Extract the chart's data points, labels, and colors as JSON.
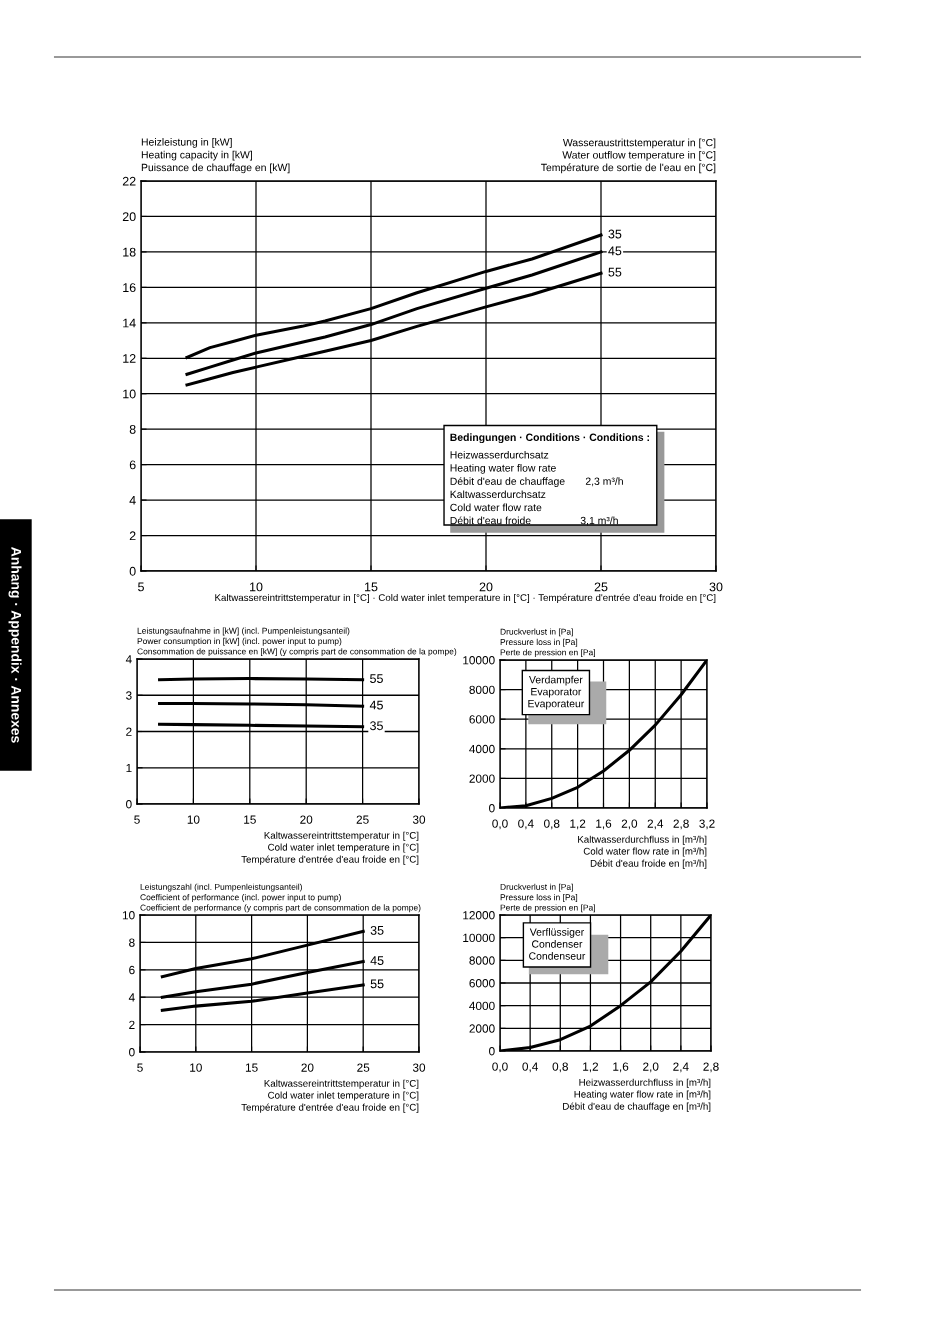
{
  "chart_data": [
    {
      "type": "line",
      "ylabel": "Heizleistung in [kW]\nHeating capacity in [kW]\nPuissance de chauffage en [kW]",
      "legend_title": "Wasseraustrittstemperatur in [°C]\nWater outflow temperature in [°C]\nTempérature de sortie de l'eau en [°C]",
      "xlabel": "Kaltwassereintrittstemperatur in [°C] · Cold water inlet temperature in [°C] · Température d'entrée d'eau froide en [°C]",
      "x": [
        7,
        8,
        9,
        10,
        12,
        13,
        15,
        17,
        20,
        22,
        25
      ],
      "series": [
        {
          "name": "35",
          "color": "#000000",
          "values": [
            12.05,
            12.6,
            12.95,
            13.3,
            13.8,
            14.1,
            14.8,
            15.7,
            16.9,
            17.6,
            18.95
          ]
        },
        {
          "name": "45",
          "color": "#000000",
          "values": [
            11.1,
            11.5,
            11.9,
            12.3,
            12.9,
            13.2,
            13.9,
            14.8,
            15.95,
            16.7,
            18.0
          ]
        },
        {
          "name": "55",
          "color": "#000000",
          "values": [
            10.5,
            10.85,
            11.2,
            11.5,
            12.1,
            12.4,
            13.0,
            13.8,
            14.9,
            15.6,
            16.8
          ]
        }
      ],
      "xlim": [
        5,
        30
      ],
      "xticks": [
        5,
        10,
        15,
        20,
        25,
        30
      ],
      "ylim": [
        0,
        22
      ],
      "yticks": [
        0,
        2,
        4,
        6,
        8,
        10,
        12,
        14,
        16,
        18,
        20,
        22
      ],
      "grid": true,
      "line_style": "solid",
      "marker": "none",
      "annotations": [
        "Bedingungen · Conditions · Conditions :",
        "Heizwasserdurchsatz\nHeating water flow rate\nDébit d'eau de chauffage       2,3 m³/h\nKaltwasserdurchsatz\nCold water flow rate\nDébit d'eau froide                 3,1 m³/h",
        "Anhang · Appendix · Annexes"
      ]
    },
    {
      "type": "line",
      "ylabel": "Leistungsaufnahme in [kW] (incl. Pumpenleistungsanteil)\nPower consumption in [kW] (incl. power input to pump)\nConsommation de puissance en [kW] (y compris part de consommation de la pompe)",
      "xlabel": "Kaltwassereintrittstemperatur in [°C]\nCold water inlet temperature in [°C]\nTempérature d'entrée d'eau froide en [°C]",
      "x": [
        7,
        10,
        15,
        20,
        25
      ],
      "series": [
        {
          "name": "55",
          "color": "#000000",
          "values": [
            3.43,
            3.45,
            3.46,
            3.45,
            3.43
          ]
        },
        {
          "name": "45",
          "color": "#000000",
          "values": [
            2.77,
            2.77,
            2.76,
            2.74,
            2.7
          ]
        },
        {
          "name": "35",
          "color": "#000000",
          "values": [
            2.2,
            2.19,
            2.17,
            2.15,
            2.13
          ]
        }
      ],
      "xlim": [
        5,
        30
      ],
      "xticks": [
        5,
        10,
        15,
        20,
        25,
        30
      ],
      "ylim": [
        0,
        4
      ],
      "yticks": [
        0,
        1,
        2,
        3,
        4
      ],
      "grid": true,
      "line_style": "solid",
      "marker": "none"
    },
    {
      "type": "line",
      "ylabel": "Druckverlust in [Pa]\nPressure loss in [Pa]\nPerte de pression en [Pa]",
      "xlabel": "Kaltwasserdurchfluss in [m³/h]\nCold water flow rate in [m³/h]\nDébit d'eau froide en [m³/h]",
      "x": [
        0,
        0.4,
        0.8,
        1.2,
        1.6,
        2.0,
        2.4,
        2.8,
        3.2
      ],
      "series": [
        {
          "color": "#000000",
          "values": [
            0,
            150,
            650,
            1400,
            2500,
            3900,
            5600,
            7650,
            10000
          ]
        }
      ],
      "xlim": [
        0,
        3.2
      ],
      "xticks": [
        {
          "value": 0,
          "label": "0,0"
        },
        {
          "value": 0.4,
          "label": "0,4"
        },
        {
          "value": 0.8,
          "label": "0,8"
        },
        {
          "value": 1.2,
          "label": "1,2"
        },
        {
          "value": 1.6,
          "label": "1,6"
        },
        {
          "value": 2.0,
          "label": "2,0"
        },
        {
          "value": 2.4,
          "label": "2,4"
        },
        {
          "value": 2.8,
          "label": "2,8"
        },
        {
          "value": 3.2,
          "label": "3,2"
        }
      ],
      "ylim": [
        0,
        10000
      ],
      "yticks": [
        0,
        2000,
        4000,
        6000,
        8000,
        10000
      ],
      "grid": true,
      "line_style": "solid",
      "marker": "none",
      "annotations": [
        "Verdampfer\nEvaporator\nEvaporateur"
      ]
    },
    {
      "type": "line",
      "ylabel": "Leistungszahl (incl. Pumpenleistungsanteil)\nCoefficient of performance (incl. power input to pump)\nCoefficient de performance (y compris part de consommation de la pompe)",
      "xlabel": "Kaltwassereintrittstemperatur in [°C]\nCold water inlet temperature in [°C]\nTempérature d'entrée d'eau froide en [°C]",
      "x": [
        7,
        10,
        15,
        20,
        25
      ],
      "series": [
        {
          "name": "35",
          "color": "#000000",
          "values": [
            5.5,
            6.1,
            6.8,
            7.8,
            8.8
          ]
        },
        {
          "name": "45",
          "color": "#000000",
          "values": [
            4.0,
            4.4,
            4.95,
            5.8,
            6.6
          ]
        },
        {
          "name": "55",
          "color": "#000000",
          "values": [
            3.05,
            3.35,
            3.7,
            4.3,
            4.9
          ]
        }
      ],
      "xlim": [
        5,
        30
      ],
      "xticks": [
        5,
        10,
        15,
        20,
        25,
        30
      ],
      "ylim": [
        0,
        10
      ],
      "yticks": [
        0,
        2,
        4,
        6,
        8,
        10
      ],
      "grid": true,
      "line_style": "solid",
      "marker": "none"
    },
    {
      "type": "line",
      "ylabel": "Druckverlust in [Pa]\nPressure loss in [Pa]\nPerte de pression en [Pa]",
      "xlabel": "Heizwasserdurchfluss in [m³/h]\nHeating water flow rate in [m³/h]\nDébit d'eau de chauffage en [m³/h]",
      "x": [
        0,
        0.4,
        0.8,
        1.2,
        1.6,
        2.0,
        2.4,
        2.8
      ],
      "series": [
        {
          "color": "#000000",
          "values": [
            0,
            300,
            1000,
            2200,
            4000,
            6100,
            8800,
            12000
          ]
        }
      ],
      "xlim": [
        0,
        2.8
      ],
      "xticks": [
        {
          "value": 0,
          "label": "0,0"
        },
        {
          "value": 0.4,
          "label": "0,4"
        },
        {
          "value": 0.8,
          "label": "0,8"
        },
        {
          "value": 1.2,
          "label": "1,2"
        },
        {
          "value": 1.6,
          "label": "1,6"
        },
        {
          "value": 2.0,
          "label": "2,0"
        },
        {
          "value": 2.4,
          "label": "2,4"
        },
        {
          "value": 2.8,
          "label": "2,8"
        }
      ],
      "ylim": [
        0,
        12000
      ],
      "yticks": [
        0,
        2000,
        4000,
        6000,
        8000,
        10000,
        12000
      ],
      "grid": true,
      "line_style": "solid",
      "marker": "none",
      "annotations": [
        "Verflüssiger\nCondenser\nCondenseur"
      ]
    }
  ]
}
